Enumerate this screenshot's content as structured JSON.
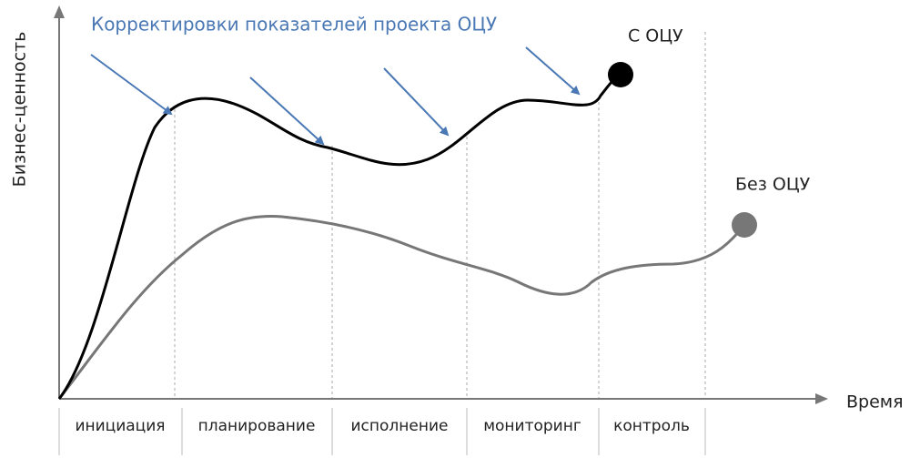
{
  "title": "Корректировки показателей проекта ОЦУ",
  "curves": [
    {
      "label": "С ОЦУ"
    },
    {
      "label": "Без ОЦУ"
    }
  ],
  "axes": {
    "y_label": "Бизнес-ценность",
    "x_label": "Время"
  },
  "phases": [
    "инициация",
    "планирование",
    "исполнение",
    "мониторинг",
    "контроль"
  ]
}
